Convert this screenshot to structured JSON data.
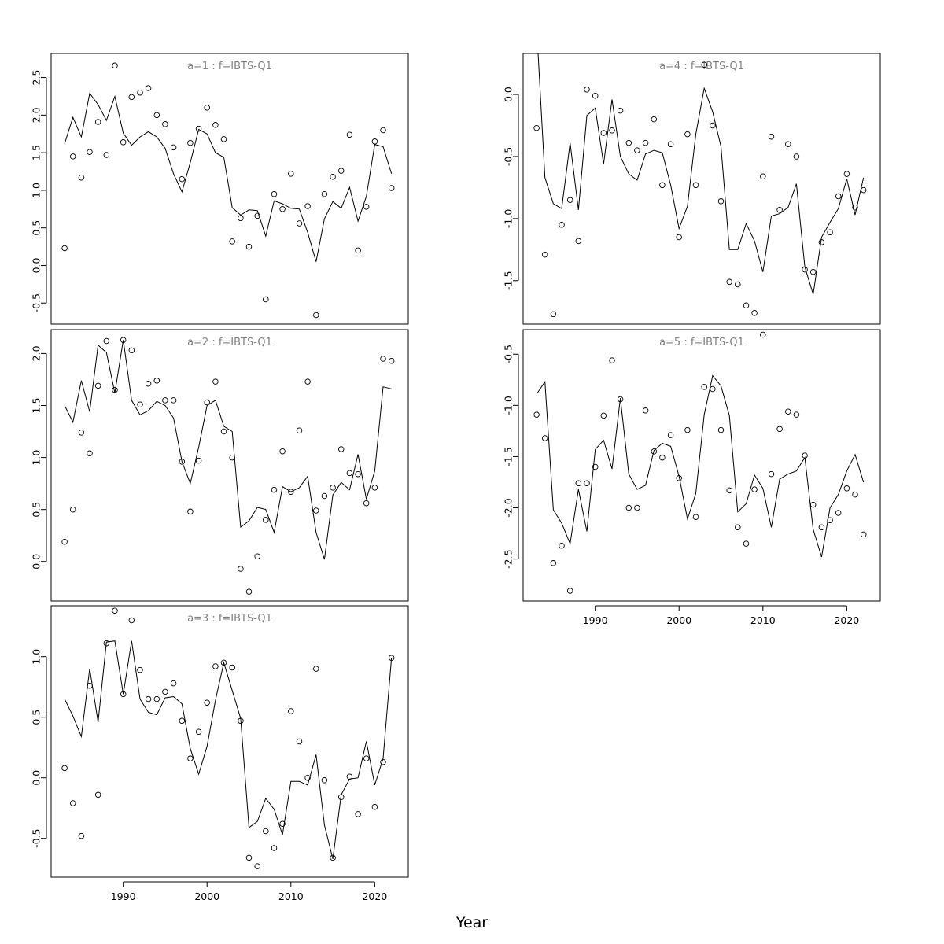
{
  "xlabel": "Year",
  "chart_data": [
    {
      "type": "line",
      "title": "a=1 : f=IBTS-Q1",
      "x_axis": "hidden",
      "xlim": [
        1981.4,
        2024.0
      ],
      "ylim": [
        -0.78,
        2.82
      ],
      "yticks": [
        -0.5,
        0.0,
        0.5,
        1.0,
        1.5,
        2.0,
        2.5
      ],
      "ytick_labels": [
        "-0.5",
        "0.0",
        "0.5",
        "1.0",
        "1.5",
        "2.0",
        "2.5"
      ],
      "x": [
        1983,
        1984,
        1985,
        1986,
        1987,
        1988,
        1989,
        1990,
        1991,
        1992,
        1993,
        1994,
        1995,
        1996,
        1997,
        1998,
        1999,
        2000,
        2001,
        2002,
        2003,
        2004,
        2005,
        2006,
        2007,
        2008,
        2009,
        2010,
        2011,
        2012,
        2013,
        2014,
        2015,
        2016,
        2017,
        2018,
        2019,
        2020,
        2021,
        2022
      ],
      "series": [
        {
          "kind": "line",
          "values": [
            1.62,
            1.97,
            1.71,
            2.29,
            2.14,
            1.93,
            2.25,
            1.76,
            1.6,
            1.71,
            1.78,
            1.71,
            1.56,
            1.22,
            0.98,
            1.37,
            1.81,
            1.75,
            1.5,
            1.44,
            0.77,
            0.67,
            0.74,
            0.73,
            0.39,
            0.86,
            0.82,
            0.76,
            0.75,
            0.44,
            0.05,
            0.62,
            0.85,
            0.76,
            1.04,
            0.59,
            0.92,
            1.61,
            1.58,
            1.22
          ]
        },
        {
          "kind": "points",
          "values": [
            0.23,
            1.45,
            1.17,
            1.51,
            1.91,
            1.47,
            2.66,
            1.64,
            2.24,
            2.3,
            2.36,
            2.0,
            1.88,
            1.57,
            1.15,
            1.63,
            1.82,
            2.1,
            1.87,
            1.68,
            0.32,
            0.63,
            0.25,
            0.66,
            -0.45,
            0.95,
            0.75,
            1.22,
            0.56,
            0.79,
            -0.66,
            0.95,
            1.18,
            1.26,
            1.74,
            0.2,
            0.78,
            1.65,
            1.8,
            1.03
          ]
        }
      ]
    },
    {
      "type": "line",
      "title": "a=2 : f=IBTS-Q1",
      "x_axis": "hidden",
      "xlim": [
        1981.4,
        2024.0
      ],
      "ylim": [
        -0.38,
        2.23
      ],
      "yticks": [
        0.0,
        0.5,
        1.0,
        1.5,
        2.0
      ],
      "ytick_labels": [
        "0.0",
        "0.5",
        "1.0",
        "1.5",
        "2.0"
      ],
      "x": [
        1983,
        1984,
        1985,
        1986,
        1987,
        1988,
        1989,
        1990,
        1991,
        1992,
        1993,
        1994,
        1995,
        1996,
        1997,
        1998,
        1999,
        2000,
        2001,
        2002,
        2003,
        2004,
        2005,
        2006,
        2007,
        2008,
        2009,
        2010,
        2011,
        2012,
        2013,
        2014,
        2015,
        2016,
        2017,
        2018,
        2019,
        2020,
        2021,
        2022
      ],
      "series": [
        {
          "kind": "line",
          "values": [
            1.5,
            1.34,
            1.74,
            1.44,
            2.08,
            2.01,
            1.62,
            2.13,
            1.55,
            1.41,
            1.45,
            1.54,
            1.5,
            1.38,
            0.96,
            0.75,
            1.1,
            1.5,
            1.55,
            1.3,
            1.25,
            0.33,
            0.39,
            0.52,
            0.5,
            0.28,
            0.72,
            0.67,
            0.71,
            0.82,
            0.28,
            0.02,
            0.64,
            0.76,
            0.69,
            1.03,
            0.6,
            0.87,
            1.68,
            1.66
          ]
        },
        {
          "kind": "points",
          "values": [
            0.19,
            0.5,
            1.24,
            1.04,
            1.69,
            2.12,
            1.65,
            2.13,
            2.03,
            1.51,
            1.71,
            1.74,
            1.55,
            1.55,
            0.96,
            0.48,
            0.97,
            1.53,
            1.73,
            1.25,
            1.0,
            -0.07,
            -0.29,
            0.05,
            0.4,
            0.69,
            1.06,
            0.67,
            1.26,
            1.73,
            0.49,
            0.63,
            0.71,
            1.08,
            0.85,
            0.84,
            0.56,
            0.71,
            1.95,
            1.93
          ]
        }
      ]
    },
    {
      "type": "line",
      "title": "a=3 : f=IBTS-Q1",
      "x_axis": "shown",
      "xlim": [
        1981.4,
        2024.0
      ],
      "xticks": [
        1990,
        2000,
        2010,
        2020
      ],
      "xtick_labels": [
        "1990",
        "2000",
        "2010",
        "2020"
      ],
      "ylim": [
        -0.82,
        1.42
      ],
      "yticks": [
        -0.5,
        0.0,
        0.5,
        1.0
      ],
      "ytick_labels": [
        "-0.5",
        "0.0",
        "0.5",
        "1.0"
      ],
      "x": [
        1983,
        1984,
        1985,
        1986,
        1987,
        1988,
        1989,
        1990,
        1991,
        1992,
        1993,
        1994,
        1995,
        1996,
        1997,
        1998,
        1999,
        2000,
        2001,
        2002,
        2003,
        2004,
        2005,
        2006,
        2007,
        2008,
        2009,
        2010,
        2011,
        2012,
        2013,
        2014,
        2015,
        2016,
        2017,
        2018,
        2019,
        2020,
        2021,
        2022
      ],
      "series": [
        {
          "kind": "line",
          "values": [
            0.65,
            0.51,
            0.34,
            0.9,
            0.46,
            1.12,
            1.13,
            0.69,
            1.13,
            0.65,
            0.54,
            0.52,
            0.66,
            0.67,
            0.61,
            0.24,
            0.03,
            0.26,
            0.64,
            0.95,
            0.72,
            0.49,
            -0.41,
            -0.36,
            -0.17,
            -0.26,
            -0.47,
            -0.03,
            -0.03,
            -0.06,
            0.19,
            -0.39,
            -0.67,
            -0.14,
            -0.01,
            0.0,
            0.3,
            -0.06,
            0.16,
            0.99
          ]
        },
        {
          "kind": "points",
          "values": [
            0.08,
            -0.21,
            -0.48,
            0.76,
            -0.14,
            1.11,
            1.38,
            0.69,
            1.3,
            0.89,
            0.65,
            0.65,
            0.71,
            0.78,
            0.47,
            0.16,
            0.38,
            0.62,
            0.92,
            0.95,
            0.91,
            0.47,
            -0.66,
            -0.73,
            -0.44,
            -0.58,
            -0.38,
            0.55,
            0.3,
            0.0,
            0.9,
            -0.02,
            -0.66,
            -0.16,
            0.01,
            -0.3,
            0.16,
            -0.24,
            0.13,
            0.99
          ]
        }
      ]
    },
    {
      "type": "line",
      "title": "a=4 : f=IBTS-Q1",
      "x_axis": "hidden",
      "xlim": [
        1981.4,
        2024.0
      ],
      "ylim": [
        -1.85,
        0.33
      ],
      "yticks": [
        -1.5,
        -1.0,
        -0.5,
        0.0
      ],
      "ytick_labels": [
        "-1.5",
        "-1.0",
        "-0.5",
        "0.0"
      ],
      "x": [
        1983,
        1984,
        1985,
        1986,
        1987,
        1988,
        1989,
        1990,
        1991,
        1992,
        1993,
        1994,
        1995,
        1996,
        1997,
        1998,
        1999,
        2000,
        2001,
        2002,
        2003,
        2004,
        2005,
        2006,
        2007,
        2008,
        2009,
        2010,
        2011,
        2012,
        2013,
        2014,
        2015,
        2016,
        2017,
        2018,
        2019,
        2020,
        2021,
        2022
      ],
      "series": [
        {
          "kind": "line",
          "values": [
            0.55,
            -0.67,
            -0.88,
            -0.92,
            -0.39,
            -0.93,
            -0.17,
            -0.11,
            -0.56,
            -0.04,
            -0.5,
            -0.64,
            -0.69,
            -0.48,
            -0.45,
            -0.47,
            -0.73,
            -1.08,
            -0.9,
            -0.32,
            0.05,
            -0.14,
            -0.42,
            -1.25,
            -1.25,
            -1.04,
            -1.18,
            -1.43,
            -0.98,
            -0.96,
            -0.91,
            -0.72,
            -1.39,
            -1.61,
            -1.15,
            -1.03,
            -0.92,
            -0.68,
            -0.97,
            -0.67
          ]
        },
        {
          "kind": "points",
          "values": [
            -0.27,
            -1.29,
            -1.77,
            -1.05,
            -0.85,
            -1.18,
            0.04,
            -0.01,
            -0.31,
            -0.29,
            -0.13,
            -0.39,
            -0.45,
            -0.39,
            -0.2,
            -0.73,
            -0.4,
            -1.15,
            -0.32,
            -0.73,
            0.24,
            -0.25,
            -0.86,
            -1.51,
            -1.53,
            -1.7,
            -1.76,
            -0.66,
            -0.34,
            -0.93,
            -0.4,
            -0.5,
            -1.41,
            -1.43,
            -1.19,
            -1.11,
            -0.82,
            -0.64,
            -0.91,
            -0.77
          ]
        }
      ]
    },
    {
      "type": "line",
      "title": "a=5 : f=IBTS-Q1",
      "x_axis": "shown",
      "xlim": [
        1981.4,
        2024.0
      ],
      "xticks": [
        1990,
        2000,
        2010,
        2020
      ],
      "xtick_labels": [
        "1990",
        "2000",
        "2010",
        "2020"
      ],
      "ylim": [
        -2.91,
        -0.26
      ],
      "yticks": [
        -2.5,
        -2.0,
        -1.5,
        -1.0,
        -0.5
      ],
      "ytick_labels": [
        "-2.5",
        "-2.0",
        "-1.5",
        "-1.0",
        "-0.5"
      ],
      "x": [
        1983,
        1984,
        1985,
        1986,
        1987,
        1988,
        1989,
        1990,
        1991,
        1992,
        1993,
        1994,
        1995,
        1996,
        1997,
        1998,
        1999,
        2000,
        2001,
        2002,
        2003,
        2004,
        2005,
        2006,
        2007,
        2008,
        2009,
        2010,
        2011,
        2012,
        2013,
        2014,
        2015,
        2016,
        2017,
        2018,
        2019,
        2020,
        2021,
        2022
      ],
      "series": [
        {
          "kind": "line",
          "values": [
            -0.89,
            -0.77,
            -2.02,
            -2.15,
            -2.35,
            -1.82,
            -2.23,
            -1.43,
            -1.34,
            -1.62,
            -0.93,
            -1.67,
            -1.82,
            -1.78,
            -1.44,
            -1.37,
            -1.4,
            -1.69,
            -2.11,
            -1.86,
            -1.09,
            -0.71,
            -0.81,
            -1.1,
            -2.04,
            -1.96,
            -1.68,
            -1.81,
            -2.19,
            -1.72,
            -1.67,
            -1.64,
            -1.51,
            -2.21,
            -2.48,
            -2.0,
            -1.87,
            -1.64,
            -1.48,
            -1.75
          ]
        },
        {
          "kind": "points",
          "values": [
            -1.09,
            -1.32,
            -2.54,
            -2.37,
            -2.81,
            -1.76,
            -1.76,
            -1.6,
            -1.1,
            -0.56,
            -0.94,
            -2.0,
            -2.0,
            -1.05,
            -1.45,
            -1.51,
            -1.29,
            -1.71,
            -1.24,
            -2.09,
            -0.82,
            -0.84,
            -1.24,
            -1.83,
            -2.19,
            -2.35,
            -1.82,
            -0.31,
            -1.67,
            -1.23,
            -1.06,
            -1.09,
            -1.49,
            -1.97,
            -2.19,
            -2.12,
            -2.05,
            -1.81,
            -1.87,
            -2.26
          ]
        }
      ]
    }
  ]
}
